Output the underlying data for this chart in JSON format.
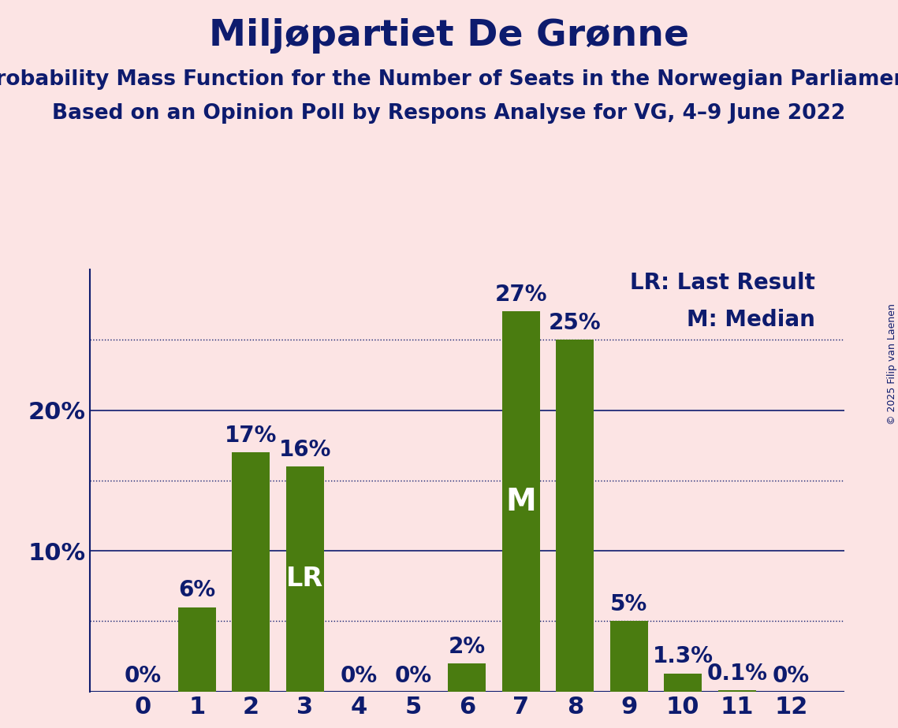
{
  "title": "Miljøpartiet De Grønne",
  "subtitle1": "Probability Mass Function for the Number of Seats in the Norwegian Parliament",
  "subtitle2": "Based on an Opinion Poll by Respons Analyse for VG, 4–9 June 2022",
  "copyright": "© 2025 Filip van Laenen",
  "categories": [
    0,
    1,
    2,
    3,
    4,
    5,
    6,
    7,
    8,
    9,
    10,
    11,
    12
  ],
  "values": [
    0.0,
    6.0,
    17.0,
    16.0,
    0.0,
    0.0,
    2.0,
    27.0,
    25.0,
    5.0,
    1.3,
    0.1,
    0.0
  ],
  "bar_color": "#4a7c10",
  "background_color": "#fce4e4",
  "text_color": "#0d1b6e",
  "bar_label_color_light": "#ffffff",
  "yticks": [
    10,
    20
  ],
  "ytick_labels": [
    "10%",
    "20%"
  ],
  "solid_lines": [
    10,
    20
  ],
  "dotted_lines": [
    5,
    15,
    25
  ],
  "lr_bar": 3,
  "median_bar": 7,
  "lr_label": "LR",
  "median_label": "M",
  "legend_lr": "LR: Last Result",
  "legend_m": "M: Median",
  "ylim": [
    0,
    30
  ],
  "title_fontsize": 34,
  "subtitle_fontsize": 19,
  "axis_tick_fontsize": 22,
  "bar_label_fontsize": 20,
  "legend_fontsize": 20,
  "copyright_fontsize": 9
}
